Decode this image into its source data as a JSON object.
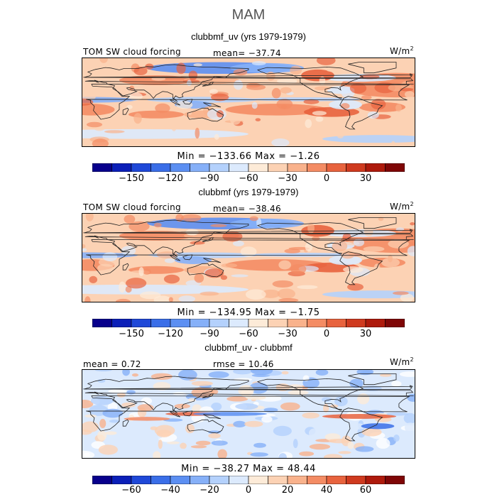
{
  "figure": {
    "season": "MAM",
    "panels": [
      {
        "title": "clubbmf_uv (yrs 1979-1979)",
        "left_label": "TOM SW cloud forcing",
        "center_label": "mean= −37.74",
        "units": "W/m",
        "units_sup": "2",
        "stats": "Min = −133.66  Max =   −1.26",
        "style": "full"
      },
      {
        "title": "clubbmf (yrs 1979-1979)",
        "left_label": "TOM SW cloud forcing",
        "center_label": "mean= −38.46",
        "units": "W/m",
        "units_sup": "2",
        "stats": "Min = −134.95  Max =   −1.75",
        "style": "full"
      },
      {
        "title": "clubbmf_uv - clubbmf",
        "left_label": "mean =   0.72",
        "center_label": "rmse =  10.46",
        "units": "W/m",
        "units_sup": "2",
        "stats": "Min = −38.27  Max =   48.44",
        "style": "diff"
      }
    ],
    "colorbar_full": {
      "colors": [
        "#08008c",
        "#0b1fb8",
        "#1f48d8",
        "#3a6ee8",
        "#5c8ff2",
        "#86b0f8",
        "#b4d1fc",
        "#dceafd",
        "#fdebd8",
        "#fcd2b4",
        "#f9b28c",
        "#f48c64",
        "#e8633e",
        "#cf3a1f",
        "#ae1a0c",
        "#7f0606"
      ],
      "tick_labels": [
        "−150",
        "−120",
        "−90",
        "−60",
        "−30",
        "0",
        "30"
      ],
      "tick_positions": [
        2,
        4,
        6,
        8,
        10,
        12,
        14
      ]
    },
    "colorbar_diff": {
      "colors": [
        "#08008c",
        "#0b1fb8",
        "#1f48d8",
        "#3a6ee8",
        "#5c8ff2",
        "#86b0f8",
        "#b4d1fc",
        "#dceafd",
        "#fdebd8",
        "#fcd2b4",
        "#f9b28c",
        "#f48c64",
        "#e8633e",
        "#cf3a1f",
        "#ae1a0c",
        "#7f0606"
      ],
      "tick_labels": [
        "−60",
        "−40",
        "−20",
        "0",
        "20",
        "40",
        "60"
      ],
      "tick_positions": [
        2,
        4,
        6,
        8,
        10,
        12,
        14
      ]
    }
  }
}
